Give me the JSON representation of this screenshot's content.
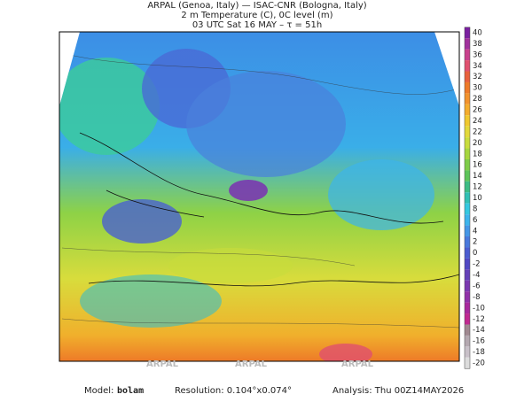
{
  "header": {
    "line1": "ARPAL (Genoa, Italy)  —  ISAC-CNR (Bologna, Italy)",
    "line2": "2 m Temperature (C), 0C level (m)",
    "line3": "03 UTC Sat 16 MAY  –  τ = 51h"
  },
  "watermark": "ARPAL",
  "colorbar": {
    "levels": [
      40,
      38,
      36,
      34,
      32,
      30,
      28,
      26,
      24,
      22,
      20,
      18,
      16,
      14,
      12,
      10,
      8,
      6,
      4,
      2,
      0,
      -2,
      -4,
      -6,
      -8,
      -10,
      -12,
      -14,
      -16,
      -18,
      -20
    ],
    "colors": [
      "#7a1fa0",
      "#a0309c",
      "#c8408c",
      "#e0506e",
      "#e8603c",
      "#ee7a28",
      "#f2922c",
      "#f4ac2c",
      "#f0c82e",
      "#e2d83a",
      "#c8dc3c",
      "#a6d63e",
      "#7ecc48",
      "#5cc45a",
      "#3cbc84",
      "#30c0b4",
      "#34c8e0",
      "#3cb4ec",
      "#4496e6",
      "#4878dc",
      "#4a5cd0",
      "#5048c4",
      "#6440b8",
      "#7a38b0",
      "#9030a8",
      "#a8289c",
      "#c02890",
      "#a08890",
      "#b4a8b0",
      "#c8c0c8",
      "#dcdcdc"
    ]
  },
  "footer": {
    "model_label": "Model:",
    "model": "bolam",
    "resolution": "Resolution: 0.104°x0.074°",
    "analysis": "Analysis: Thu 00Z14MAY2026"
  }
}
